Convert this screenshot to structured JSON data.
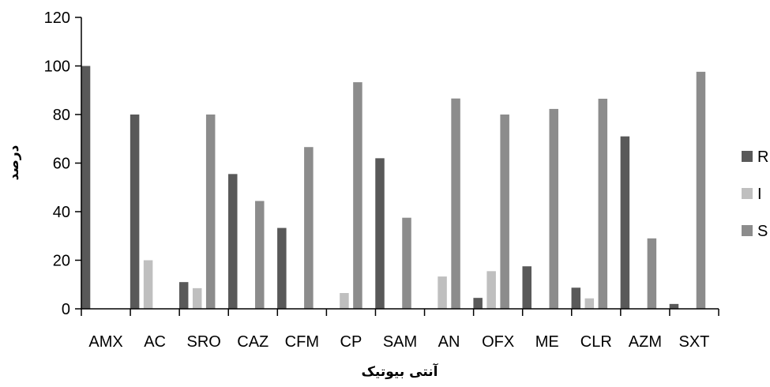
{
  "chart_data": {
    "type": "bar",
    "title": "",
    "xlabel": "آنتی بیوتیک",
    "ylabel": "درصد",
    "categories": [
      "AMX",
      "AC",
      "SRO",
      "CAZ",
      "CFM",
      "CP",
      "SAM",
      "AN",
      "OFX",
      "ME",
      "CLR",
      "AZM",
      "SXT"
    ],
    "series": [
      {
        "name": "R",
        "color": "#595959",
        "values": [
          100,
          80,
          11,
          55.5,
          33.3,
          0,
          62,
          0,
          4.5,
          17.5,
          8.7,
          71,
          2
        ]
      },
      {
        "name": "I",
        "color": "#bfbfbf",
        "values": [
          0,
          20,
          8.5,
          0,
          0,
          6.5,
          0,
          13.3,
          15.5,
          0,
          4.3,
          0,
          0
        ]
      },
      {
        "name": "S",
        "color": "#8c8c8c",
        "values": [
          0,
          0,
          80,
          44.4,
          66.6,
          93.3,
          37.5,
          86.6,
          80,
          82.3,
          86.5,
          29,
          97.6
        ]
      }
    ],
    "ylim": [
      0,
      120
    ],
    "yticks": [
      0,
      20,
      40,
      60,
      80,
      100,
      120
    ],
    "grid": false,
    "legend_position": "right"
  }
}
